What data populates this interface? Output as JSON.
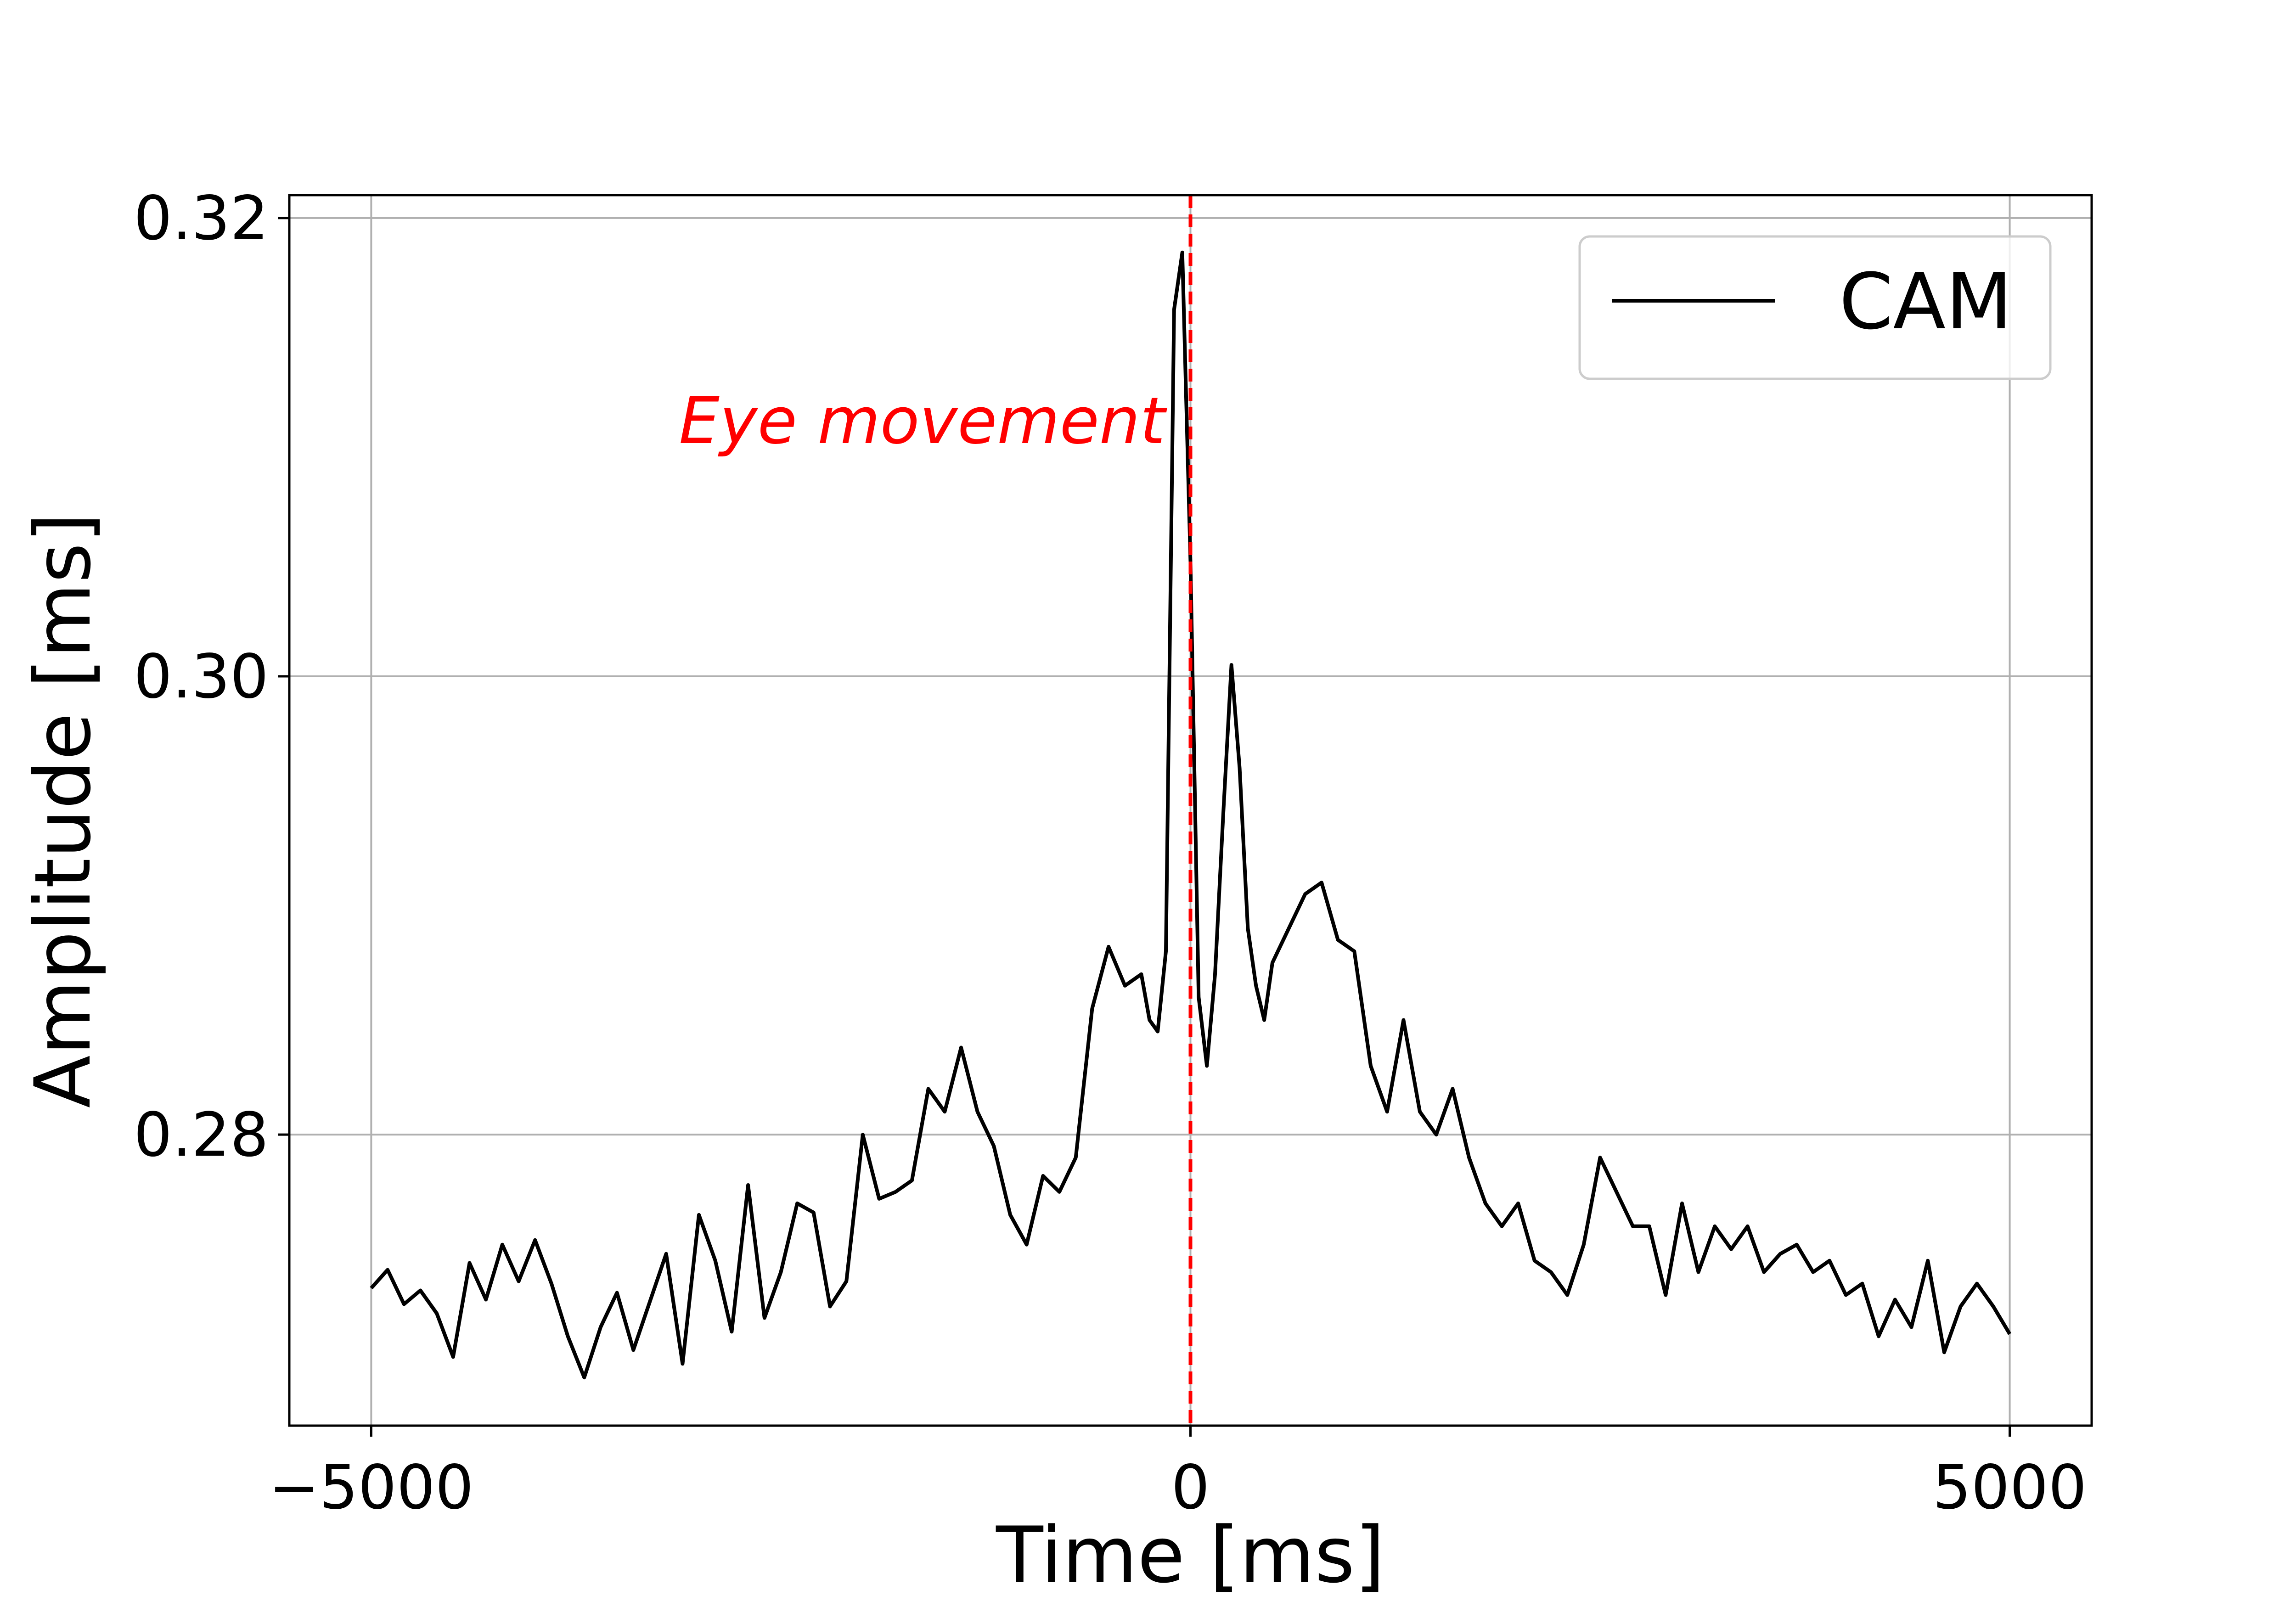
{
  "chart_data": {
    "type": "line",
    "title": "",
    "xlabel": "Time [ms]",
    "ylabel": "Amplitude [ms]",
    "xlim": [
      -5500,
      5500
    ],
    "ylim": [
      0.2673,
      0.321
    ],
    "grid": true,
    "legend_placement": "top-right",
    "xticks": [
      {
        "value": -5000,
        "label": "−5000"
      },
      {
        "value": 0,
        "label": "0"
      },
      {
        "value": 5000,
        "label": "5000"
      }
    ],
    "yticks": [
      {
        "value": 0.28,
        "label": "0.28"
      },
      {
        "value": 0.3,
        "label": "0.30"
      },
      {
        "value": 0.32,
        "label": "0.32"
      }
    ],
    "annotations": [
      {
        "text": "Eye movement",
        "x": 0,
        "color": "#ff0000",
        "style": "dashed vertical line"
      }
    ],
    "series": [
      {
        "name": "CAM",
        "color": "#000000",
        "x": [
          -5000,
          -4900,
          -4800,
          -4700,
          -4600,
          -4500,
          -4400,
          -4300,
          -4200,
          -4100,
          -4000,
          -3900,
          -3800,
          -3700,
          -3600,
          -3500,
          -3400,
          -3300,
          -3200,
          -3100,
          -3000,
          -2900,
          -2800,
          -2700,
          -2600,
          -2500,
          -2400,
          -2300,
          -2200,
          -2100,
          -2000,
          -1900,
          -1800,
          -1700,
          -1600,
          -1500,
          -1400,
          -1300,
          -1200,
          -1100,
          -1000,
          -900,
          -800,
          -700,
          -600,
          -500,
          -400,
          -300,
          -250,
          -200,
          -150,
          -100,
          -50,
          0,
          50,
          100,
          150,
          200,
          250,
          300,
          350,
          400,
          450,
          500,
          600,
          700,
          800,
          900,
          1000,
          1100,
          1200,
          1300,
          1400,
          1500,
          1600,
          1700,
          1800,
          1900,
          2000,
          2100,
          2200,
          2300,
          2400,
          2500,
          2600,
          2700,
          2800,
          2900,
          3000,
          3100,
          3200,
          3300,
          3400,
          3500,
          3600,
          3700,
          3800,
          3900,
          4000,
          4100,
          4200,
          4300,
          4400,
          4500,
          4600,
          4700,
          4800,
          4900,
          5000
        ],
        "y": [
          0.2733,
          0.2741,
          0.2726,
          0.2732,
          0.2722,
          0.2703,
          0.2744,
          0.2728,
          0.2752,
          0.2736,
          0.2754,
          0.2735,
          0.2712,
          0.2694,
          0.2716,
          0.2731,
          0.2706,
          0.2727,
          0.2748,
          0.27,
          0.2765,
          0.2745,
          0.2714,
          0.2778,
          0.272,
          0.274,
          0.277,
          0.2766,
          0.2725,
          0.2736,
          0.28,
          0.2772,
          0.2775,
          0.278,
          0.282,
          0.281,
          0.2838,
          0.281,
          0.2795,
          0.2765,
          0.2752,
          0.2782,
          0.2775,
          0.279,
          0.2855,
          0.2882,
          0.2865,
          0.287,
          0.285,
          0.2845,
          0.288,
          0.316,
          0.3185,
          0.305,
          0.286,
          0.283,
          0.287,
          0.294,
          0.3005,
          0.296,
          0.289,
          0.2865,
          0.285,
          0.2875,
          0.289,
          0.2905,
          0.291,
          0.2885,
          0.288,
          0.283,
          0.281,
          0.285,
          0.281,
          0.28,
          0.282,
          0.279,
          0.277,
          0.276,
          0.277,
          0.2745,
          0.274,
          0.273,
          0.2752,
          0.279,
          0.2775,
          0.276,
          0.276,
          0.273,
          0.277,
          0.274,
          0.276,
          0.275,
          0.276,
          0.274,
          0.2748,
          0.2752,
          0.274,
          0.2745,
          0.273,
          0.2735,
          0.2712,
          0.2728,
          0.2716,
          0.2745,
          0.2705,
          0.2725,
          0.2735,
          0.2725,
          0.2713
        ]
      }
    ]
  }
}
